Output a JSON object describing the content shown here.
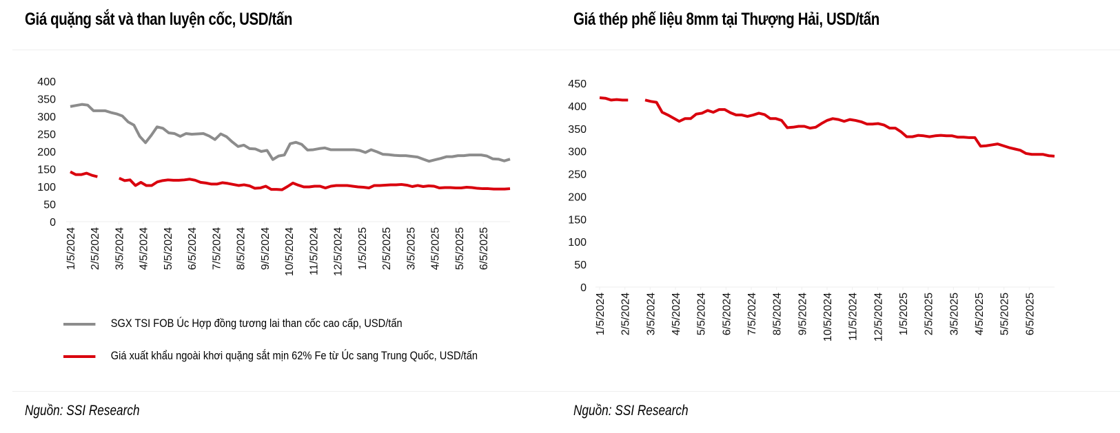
{
  "charts": {
    "left": {
      "title": "Giá quặng sắt và than luyện cốc, USD/tấn",
      "source": "Nguồn: SSI Research"
    },
    "right": {
      "title": "Giá thép phế liệu 8mm tại Thượng Hải, USD/tấn",
      "source": "Nguồn: SSI Research"
    }
  },
  "colors": {
    "gray_series": "#8c8c8c",
    "red_series": "#d9000d",
    "gridline": "#eeeeee"
  },
  "chart_data": [
    {
      "type": "line",
      "title": "Giá quặng sắt và than luyện cốc, USD/tấn",
      "xlabel": "",
      "ylabel": "",
      "ylim": [
        0,
        400
      ],
      "yticks": [
        "0",
        "50",
        "100",
        "150",
        "200",
        "250",
        "300",
        "350",
        "400"
      ],
      "xticks": [
        "1/5/2024",
        "2/5/2024",
        "3/5/2024",
        "4/5/2024",
        "5/5/2024",
        "6/5/2024",
        "7/5/2024",
        "8/5/2024",
        "9/5/2024",
        "10/5/2024",
        "11/5/2024",
        "12/5/2024",
        "1/5/2025",
        "2/5/2025",
        "3/5/2025",
        "4/5/2025",
        "5/5/2025",
        "6/5/2025"
      ],
      "grid": false,
      "legend_position": "bottom",
      "series": [
        {
          "name": "SGX TSI FOB Úc Hợp đồng tương lai than cốc cao cấp, USD/tấn",
          "color": "#8c8c8c",
          "values": [
            328,
            331,
            334,
            332,
            316,
            316,
            316,
            311,
            307,
            301,
            284,
            275,
            243,
            225,
            246,
            270,
            266,
            253,
            251,
            243,
            251,
            249,
            250,
            251,
            244,
            234,
            250,
            242,
            227,
            214,
            218,
            208,
            207,
            200,
            203,
            177,
            187,
            190,
            222,
            226,
            220,
            204,
            205,
            208,
            210,
            205,
            205,
            205,
            205,
            205,
            203,
            197,
            205,
            199,
            192,
            191,
            189,
            188,
            188,
            186,
            184,
            178,
            172,
            176,
            180,
            185,
            185,
            188,
            188,
            190,
            190,
            190,
            187,
            179,
            178,
            173,
            178
          ]
        },
        {
          "name": "Giá xuất khẩu ngoài khơi quặng sắt mịn 62% Fe từ Úc sang Trung Quốc, USD/tấn",
          "color": "#d9000d",
          "values": [
            142,
            134,
            134,
            138,
            132,
            128,
            null,
            null,
            null,
            124,
            117,
            119,
            103,
            112,
            103,
            103,
            113,
            117,
            119,
            118,
            118,
            119,
            121,
            118,
            112,
            110,
            107,
            107,
            111,
            109,
            106,
            103,
            105,
            102,
            95,
            96,
            101,
            92,
            92,
            91,
            100,
            110,
            104,
            99,
            99,
            101,
            101,
            96,
            101,
            103,
            103,
            103,
            101,
            99,
            98,
            96,
            103,
            103,
            104,
            105,
            105,
            106,
            104,
            100,
            103,
            100,
            102,
            101,
            96,
            97,
            97,
            96,
            96,
            98,
            97,
            95,
            94,
            94,
            93,
            93,
            93,
            94
          ]
        }
      ]
    },
    {
      "type": "line",
      "title": "Giá thép phế liệu 8mm tại Thượng Hải, USD/tấn",
      "xlabel": "",
      "ylabel": "",
      "ylim": [
        0,
        450
      ],
      "yticks": [
        "0",
        "50",
        "100",
        "150",
        "200",
        "250",
        "300",
        "350",
        "400",
        "450"
      ],
      "xticks": [
        "1/5/2024",
        "2/5/2024",
        "3/5/2024",
        "4/5/2024",
        "5/5/2024",
        "6/5/2024",
        "7/5/2024",
        "8/5/2024",
        "9/5/2024",
        "10/5/2024",
        "11/5/2024",
        "12/5/2024",
        "1/5/2025",
        "2/5/2025",
        "3/5/2025",
        "4/5/2025",
        "5/5/2025",
        "6/5/2025"
      ],
      "grid": false,
      "legend_position": "none",
      "series": [
        {
          "name": "Giá thép phế liệu 8mm tại Thượng Hải",
          "color": "#d9000d",
          "values": [
            418,
            417,
            413,
            414,
            413,
            413,
            null,
            null,
            413,
            410,
            408,
            386,
            380,
            373,
            366,
            372,
            372,
            382,
            384,
            390,
            386,
            392,
            392,
            385,
            380,
            380,
            377,
            380,
            384,
            381,
            372,
            372,
            368,
            352,
            353,
            355,
            355,
            351,
            353,
            361,
            368,
            372,
            370,
            366,
            370,
            368,
            365,
            360,
            360,
            361,
            358,
            351,
            351,
            343,
            332,
            332,
            335,
            334,
            332,
            334,
            335,
            334,
            334,
            331,
            331,
            330,
            330,
            311,
            312,
            314,
            316,
            312,
            308,
            305,
            302,
            295,
            293,
            293,
            293,
            290,
            289
          ]
        }
      ]
    }
  ]
}
